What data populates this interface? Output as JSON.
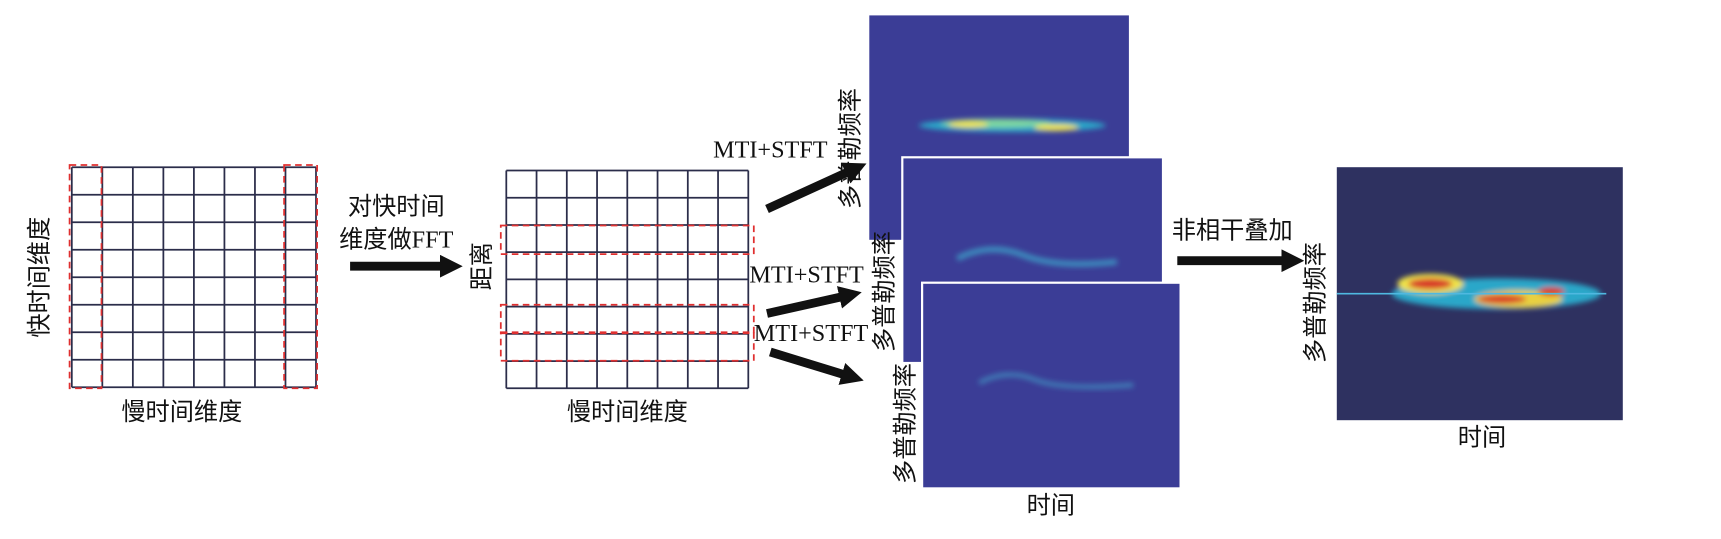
{
  "left_grid": {
    "y_label": "快时间维度",
    "x_label": "慢时间维度"
  },
  "fft_step": {
    "label_line1": "对快时间",
    "label_line2": "维度做FFT"
  },
  "middle_grid": {
    "y_label": "距离",
    "x_label": "慢时间维度"
  },
  "stft_steps": [
    {
      "label": "MTI+STFT"
    },
    {
      "label": "MTI+STFT"
    },
    {
      "label": "MTI+STFT"
    }
  ],
  "spectrograms": [
    {
      "y_label": "多普勒频率"
    },
    {
      "y_label": "多普勒频率"
    },
    {
      "y_label": "多普勒频率",
      "x_label": "时间"
    }
  ],
  "sum_step": {
    "label": "非相干叠加"
  },
  "result": {
    "y_label": "多普勒频率",
    "x_label": "时间"
  }
}
